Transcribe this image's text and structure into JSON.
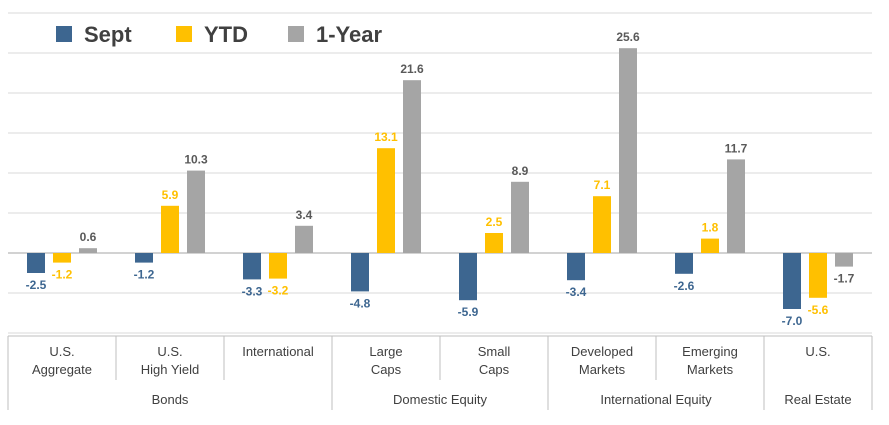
{
  "chart_data": {
    "type": "bar",
    "categories": [
      {
        "line1": "U.S.",
        "line2": "Aggregate"
      },
      {
        "line1": "U.S.",
        "line2": "High Yield"
      },
      {
        "line1": "International",
        "line2": ""
      },
      {
        "line1": "Large",
        "line2": "Caps"
      },
      {
        "line1": "Small",
        "line2": "Caps"
      },
      {
        "line1": "Developed",
        "line2": "Markets"
      },
      {
        "line1": "Emerging",
        "line2": "Markets"
      },
      {
        "line1": "U.S.",
        "line2": ""
      }
    ],
    "groups": [
      {
        "label": "Bonds",
        "span": [
          0,
          2
        ]
      },
      {
        "label": "Domestic Equity",
        "span": [
          3,
          4
        ]
      },
      {
        "label": "International Equity",
        "span": [
          5,
          6
        ]
      },
      {
        "label": "Real Estate",
        "span": [
          7,
          7
        ]
      }
    ],
    "series": [
      {
        "name": "Sept",
        "color": "#3d6690",
        "values": [
          -2.5,
          -1.2,
          -3.3,
          -4.8,
          -5.9,
          -3.4,
          -2.6,
          -7.0
        ],
        "labels": [
          "-2.5",
          "-1.2",
          "-3.3",
          "-4.8",
          "-5.9",
          "-3.4",
          "-2.6",
          "-7.0"
        ]
      },
      {
        "name": "YTD",
        "color": "#ffc000",
        "values": [
          -1.2,
          5.9,
          -3.2,
          13.1,
          2.5,
          7.1,
          1.8,
          -5.6
        ],
        "labels": [
          "-1.2",
          "5.9",
          "-3.2",
          "13.1",
          "2.5",
          "7.1",
          "1.8",
          "-5.6"
        ]
      },
      {
        "name": "1-Year",
        "color": "#a5a5a5",
        "values": [
          0.6,
          10.3,
          3.4,
          21.6,
          8.9,
          25.6,
          11.7,
          -1.7
        ],
        "labels": [
          "0.6",
          "10.3",
          "3.4",
          "21.6",
          "8.9",
          "25.6",
          "11.7",
          "-1.7"
        ]
      }
    ],
    "label_colors": [
      "#3d6690",
      "#ffc000",
      "#595959"
    ],
    "ylim": [
      -10,
      30
    ],
    "gridline_step": 5,
    "grid": true,
    "legend": "top-left"
  }
}
